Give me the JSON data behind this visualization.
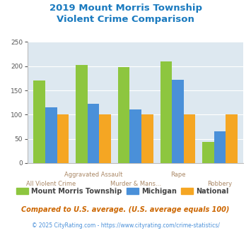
{
  "title": "2019 Mount Morris Township\nViolent Crime Comparison",
  "series": {
    "Mount Morris Township": [
      170,
      203,
      198,
      210,
      44
    ],
    "Michigan": [
      115,
      122,
      111,
      172,
      66
    ],
    "National": [
      100,
      100,
      100,
      100,
      100
    ]
  },
  "colors": {
    "Mount Morris Township": "#8dc63f",
    "Michigan": "#4a90d9",
    "National": "#f5a623"
  },
  "top_labels": [
    "",
    "Aggravated Assault",
    "",
    "Rape",
    ""
  ],
  "bot_labels": [
    "All Violent Crime",
    "",
    "Murder & Mans...",
    "",
    "Robbery"
  ],
  "ylim": [
    0,
    250
  ],
  "yticks": [
    0,
    50,
    100,
    150,
    200,
    250
  ],
  "plot_bg": "#dde8f0",
  "title_color": "#1a7abf",
  "xlabel_color_top": "#aa8866",
  "xlabel_color_bot": "#aa8866",
  "legend_color": "#444444",
  "footnote1": "Compared to U.S. average. (U.S. average equals 100)",
  "footnote2": "© 2025 CityRating.com - https://www.cityrating.com/crime-statistics/",
  "footnote1_color": "#cc6600",
  "footnote2_color": "#4a90d9"
}
